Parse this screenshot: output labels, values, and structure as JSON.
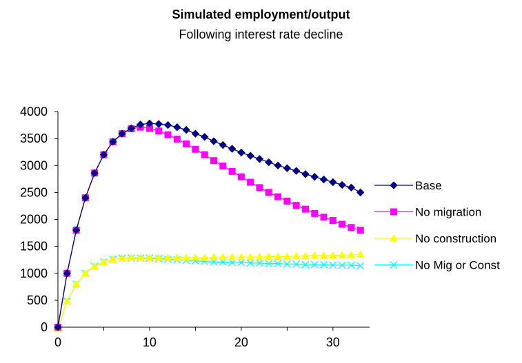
{
  "chart_data": {
    "type": "line",
    "title": "Simulated employment/output",
    "subtitle": "Following interest rate decline",
    "xlabel": "",
    "ylabel": "",
    "xlim": [
      0,
      34
    ],
    "ylim": [
      0,
      4000
    ],
    "x_ticks": [
      0,
      10,
      20,
      30
    ],
    "y_ticks": [
      0,
      500,
      1000,
      1500,
      2000,
      2500,
      3000,
      3500,
      4000
    ],
    "grid": false,
    "legend_position": "right",
    "x": [
      0,
      1,
      2,
      3,
      4,
      5,
      6,
      7,
      8,
      9,
      10,
      11,
      12,
      13,
      14,
      15,
      16,
      17,
      18,
      19,
      20,
      21,
      22,
      23,
      24,
      25,
      26,
      27,
      28,
      29,
      30,
      31,
      32,
      33
    ],
    "series": [
      {
        "name": "Base",
        "color": "#000080",
        "marker": "diamond",
        "values": [
          0,
          1000,
          1800,
          2400,
          2860,
          3200,
          3440,
          3590,
          3690,
          3760,
          3780,
          3770,
          3750,
          3710,
          3660,
          3590,
          3530,
          3450,
          3380,
          3310,
          3240,
          3180,
          3120,
          3060,
          3000,
          2950,
          2900,
          2840,
          2790,
          2740,
          2690,
          2640,
          2590,
          2500
        ]
      },
      {
        "name": "No migration",
        "color": "#FF00FF",
        "marker": "square",
        "values": [
          0,
          1000,
          1800,
          2400,
          2860,
          3200,
          3440,
          3590,
          3680,
          3710,
          3690,
          3640,
          3570,
          3490,
          3400,
          3300,
          3200,
          3090,
          2990,
          2890,
          2790,
          2690,
          2590,
          2500,
          2420,
          2340,
          2260,
          2190,
          2110,
          2040,
          1980,
          1910,
          1850,
          1800
        ]
      },
      {
        "name": "No construction",
        "color": "#FFFF00",
        "marker": "triangle",
        "values": [
          -30,
          480,
          800,
          1000,
          1130,
          1210,
          1260,
          1280,
          1290,
          1290,
          1290,
          1290,
          1290,
          1290,
          1290,
          1290,
          1290,
          1300,
          1300,
          1300,
          1300,
          1300,
          1300,
          1310,
          1310,
          1310,
          1320,
          1320,
          1330,
          1330,
          1330,
          1340,
          1340,
          1350
        ]
      },
      {
        "name": "No Mig or Const",
        "color": "#00FFFF",
        "marker": "x",
        "values": [
          -30,
          480,
          800,
          1000,
          1130,
          1210,
          1260,
          1280,
          1280,
          1280,
          1280,
          1270,
          1260,
          1250,
          1240,
          1230,
          1220,
          1210,
          1210,
          1200,
          1200,
          1190,
          1190,
          1180,
          1180,
          1170,
          1170,
          1160,
          1160,
          1160,
          1150,
          1150,
          1150,
          1140
        ]
      }
    ]
  }
}
